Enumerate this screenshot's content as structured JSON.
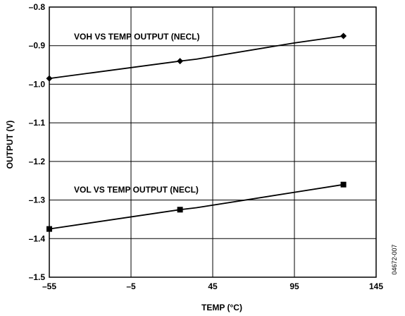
{
  "chart_data": {
    "type": "line",
    "xlabel": "TEMP (°C)",
    "ylabel": "OUTPUT (V)",
    "xlim": [
      -55,
      145
    ],
    "ylim": [
      -1.5,
      -0.8
    ],
    "x_ticks": [
      -55,
      -5,
      45,
      95,
      145
    ],
    "y_ticks": [
      -1.5,
      -1.4,
      -1.3,
      -1.2,
      -1.1,
      -1.0,
      -0.9,
      -0.8
    ],
    "x_tick_labels": [
      "–55",
      "–5",
      "45",
      "95",
      "145"
    ],
    "y_tick_labels": [
      "–1.5",
      "–1.4",
      "–1.3",
      "–1.2",
      "–1.1",
      "–1.0",
      "–0.9",
      "–0.8"
    ],
    "grid": true,
    "legend": "none",
    "series": [
      {
        "name": "VOH VS TEMP OUTPUT (NECL)",
        "marker": "diamond",
        "line_x": [
          -55,
          25,
          35,
          95,
          125
        ],
        "line_y": [
          -0.985,
          -0.94,
          -0.935,
          -0.893,
          -0.875
        ],
        "marker_x": [
          -55,
          25,
          125
        ],
        "marker_y": [
          -0.985,
          -0.94,
          -0.875
        ]
      },
      {
        "name": "VOL VS TEMP OUTPUT (NECL)",
        "marker": "square",
        "line_x": [
          -55,
          25,
          35,
          95,
          125
        ],
        "line_y": [
          -1.375,
          -1.325,
          -1.32,
          -1.28,
          -1.26
        ],
        "marker_x": [
          -55,
          25,
          125
        ],
        "marker_y": [
          -1.375,
          -1.325,
          -1.26
        ]
      }
    ]
  },
  "figure_id": "04672-007"
}
